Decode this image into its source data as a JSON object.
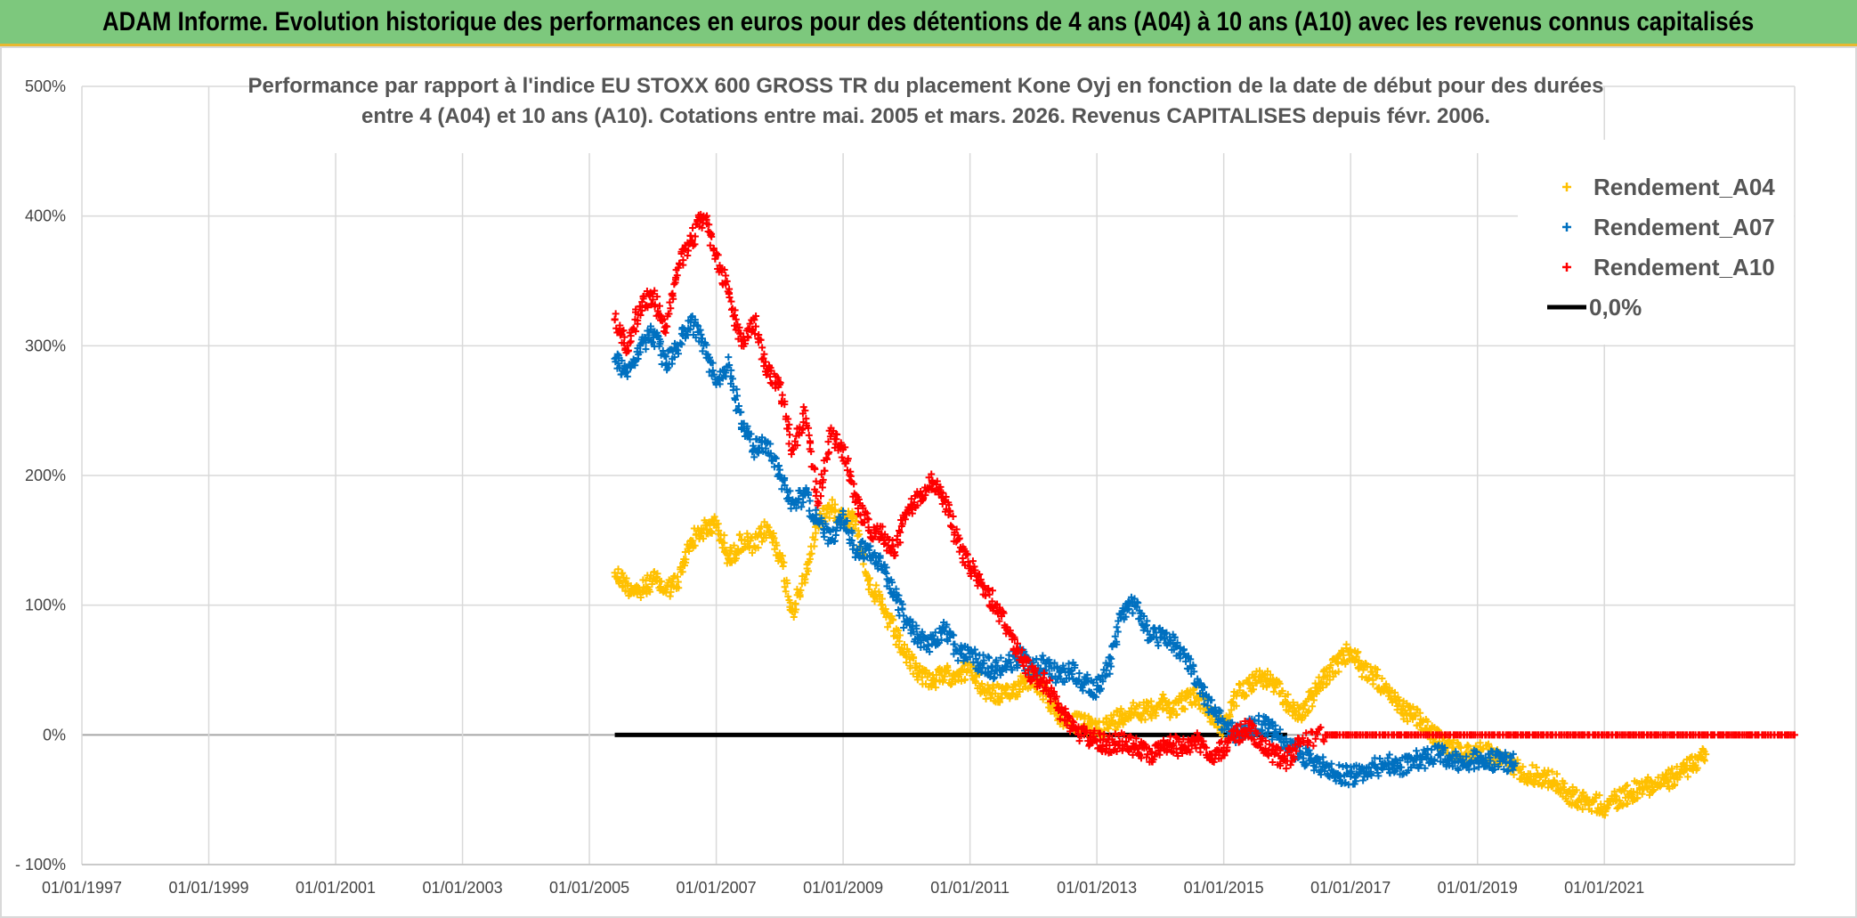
{
  "banner": {
    "title": "ADAM Informe. Evolution historique des performances en euros pour des détentions de 4 ans (A04) à 10 ans (A10) avec les revenus connus capitalisés"
  },
  "colors": {
    "banner_bg": "#7dc87d",
    "A04": "#ffc000",
    "A07": "#0070c0",
    "A10": "#ff0000",
    "zero": "#000000"
  },
  "chart_data": {
    "type": "scatter",
    "title_line1": "Performance par rapport à l'indice EU STOXX 600 GROSS TR  du placement Kone Oyj en fonction de la date de début pour des durées",
    "title_line2": "entre 4 (A04) et 10 ans (A10). Cotations entre mai. 2005 et mars. 2026. Revenus CAPITALISES depuis févr. 2006.",
    "xlim": [
      1997.0,
      2024.0
    ],
    "ylim": [
      -100,
      500
    ],
    "y_ticks": [
      -100,
      0,
      100,
      200,
      300,
      400,
      500
    ],
    "y_tick_labels": [
      "- 100%",
      "0%",
      "100%",
      "200%",
      "300%",
      "400%",
      "500%"
    ],
    "x_ticks": [
      1997,
      1999,
      2001,
      2003,
      2005,
      2007,
      2009,
      2011,
      2013,
      2015,
      2017,
      2019,
      2021
    ],
    "x_tick_labels": [
      "01/01/1997",
      "01/01/1999",
      "01/01/2001",
      "01/01/2003",
      "01/01/2005",
      "01/01/2007",
      "01/01/2009",
      "01/01/2011",
      "01/01/2013",
      "01/01/2015",
      "01/01/2017",
      "01/01/2019",
      "01/01/2021"
    ],
    "legend_position": "top-right",
    "series": [
      {
        "name": "Rendement_A04",
        "color": "#ffc000",
        "x": [
          2005.4,
          2005.6,
          2005.8,
          2006.0,
          2006.2,
          2006.4,
          2006.6,
          2006.8,
          2007.0,
          2007.2,
          2007.4,
          2007.6,
          2007.8,
          2008.0,
          2008.2,
          2008.4,
          2008.6,
          2008.8,
          2009.0,
          2009.2,
          2009.4,
          2009.6,
          2009.8,
          2010.0,
          2010.2,
          2010.4,
          2010.6,
          2010.8,
          2011.0,
          2011.2,
          2011.4,
          2011.6,
          2011.8,
          2012.0,
          2012.2,
          2012.4,
          2012.6,
          2012.8,
          2013.0,
          2013.2,
          2013.4,
          2013.6,
          2013.8,
          2014.0,
          2014.2,
          2014.4,
          2014.6,
          2014.8,
          2015.0,
          2015.2,
          2015.4,
          2015.6,
          2015.8,
          2016.0,
          2016.2,
          2016.4,
          2016.6,
          2016.8,
          2017.0,
          2017.2,
          2017.4,
          2017.6,
          2017.8,
          2018.0,
          2018.2,
          2018.4,
          2018.6,
          2018.8,
          2019.0,
          2019.2,
          2019.4,
          2019.6,
          2019.8,
          2020.0,
          2020.2,
          2020.4,
          2020.6,
          2020.8,
          2021.0,
          2021.2,
          2021.4,
          2021.6,
          2021.8,
          2022.0,
          2022.2,
          2022.4,
          2022.6
        ],
        "y": [
          125,
          115,
          110,
          120,
          112,
          118,
          150,
          158,
          162,
          135,
          150,
          145,
          160,
          140,
          95,
          120,
          165,
          175,
          168,
          165,
          120,
          100,
          80,
          60,
          48,
          42,
          45,
          48,
          50,
          35,
          32,
          30,
          40,
          45,
          30,
          15,
          10,
          8,
          5,
          8,
          15,
          20,
          18,
          25,
          20,
          28,
          30,
          15,
          5,
          30,
          40,
          45,
          38,
          25,
          15,
          30,
          45,
          55,
          65,
          50,
          45,
          30,
          20,
          15,
          5,
          -5,
          -10,
          -15,
          -12,
          -15,
          -20,
          -25,
          -30,
          -32,
          -35,
          -45,
          -50,
          -52,
          -55,
          -50,
          -45,
          -40,
          -38,
          -35,
          -30,
          -22,
          -15
        ]
      },
      {
        "name": "Rendement_A07",
        "color": "#0070c0",
        "x": [
          2005.4,
          2005.6,
          2005.8,
          2006.0,
          2006.2,
          2006.4,
          2006.6,
          2006.8,
          2007.0,
          2007.2,
          2007.4,
          2007.6,
          2007.8,
          2008.0,
          2008.2,
          2008.4,
          2008.6,
          2008.8,
          2009.0,
          2009.2,
          2009.4,
          2009.6,
          2009.8,
          2010.0,
          2010.2,
          2010.4,
          2010.6,
          2010.8,
          2011.0,
          2011.2,
          2011.4,
          2011.6,
          2011.8,
          2012.0,
          2012.2,
          2012.4,
          2012.6,
          2012.8,
          2013.0,
          2013.2,
          2013.4,
          2013.6,
          2013.8,
          2014.0,
          2014.2,
          2014.4,
          2014.6,
          2014.8,
          2015.0,
          2015.2,
          2015.4,
          2015.6,
          2015.8,
          2016.0,
          2016.2,
          2016.4,
          2016.6,
          2016.8,
          2017.0,
          2017.2,
          2017.4,
          2017.6,
          2017.8,
          2018.0,
          2018.2,
          2018.4,
          2018.6,
          2018.8,
          2019.0,
          2019.2,
          2019.4,
          2019.6
        ],
        "y": [
          290,
          280,
          300,
          310,
          285,
          300,
          320,
          300,
          270,
          285,
          240,
          220,
          225,
          200,
          180,
          185,
          165,
          150,
          170,
          140,
          145,
          130,
          110,
          85,
          75,
          70,
          80,
          65,
          60,
          55,
          50,
          55,
          60,
          50,
          55,
          45,
          50,
          40,
          35,
          55,
          95,
          100,
          80,
          75,
          70,
          60,
          40,
          20,
          10,
          0,
          5,
          8,
          2,
          -10,
          -15,
          -20,
          -25,
          -30,
          -32,
          -28,
          -25,
          -22,
          -25,
          -20,
          -18,
          -15,
          -20,
          -22,
          -18,
          -20,
          -20,
          -22
        ]
      },
      {
        "name": "Rendement_A10",
        "color": "#ff0000",
        "x": [
          2005.4,
          2005.6,
          2005.8,
          2006.0,
          2006.2,
          2006.4,
          2006.6,
          2006.8,
          2007.0,
          2007.2,
          2007.4,
          2007.6,
          2007.8,
          2008.0,
          2008.2,
          2008.4,
          2008.6,
          2008.8,
          2009.0,
          2009.2,
          2009.4,
          2009.6,
          2009.8,
          2010.0,
          2010.2,
          2010.4,
          2010.6,
          2010.8,
          2011.0,
          2011.2,
          2011.4,
          2011.6,
          2011.8,
          2012.0,
          2012.2,
          2012.4,
          2012.6,
          2012.8,
          2013.0,
          2013.2,
          2013.4,
          2013.6,
          2013.8,
          2014.0,
          2014.2,
          2014.4,
          2014.6,
          2014.8,
          2015.0,
          2015.2,
          2015.4,
          2015.6,
          2015.8,
          2016.0,
          2016.2,
          2016.6,
          2017.0,
          2017.5,
          2018.0,
          2018.5,
          2019.0,
          2019.5,
          2020.0,
          2020.5,
          2021.0,
          2021.5,
          2022.0,
          2022.5,
          2023.0,
          2023.5,
          2024.0
        ],
        "y": [
          320,
          300,
          330,
          340,
          310,
          360,
          380,
          400,
          370,
          340,
          300,
          320,
          280,
          270,
          220,
          250,
          180,
          230,
          220,
          180,
          160,
          155,
          140,
          170,
          185,
          195,
          180,
          150,
          130,
          115,
          100,
          80,
          60,
          45,
          40,
          20,
          5,
          0,
          -5,
          -8,
          -5,
          -10,
          -15,
          -12,
          -8,
          -10,
          -5,
          -15,
          -10,
          0,
          5,
          -5,
          -15,
          -20,
          -5,
          0,
          0,
          0,
          0,
          0,
          0,
          0,
          0,
          0,
          0,
          0,
          0,
          0,
          0,
          0,
          0
        ]
      },
      {
        "name": "0,0%",
        "color": "#000000",
        "kind": "line",
        "x": [
          2005.4,
          2016.0
        ],
        "y": [
          0,
          0
        ]
      }
    ]
  }
}
